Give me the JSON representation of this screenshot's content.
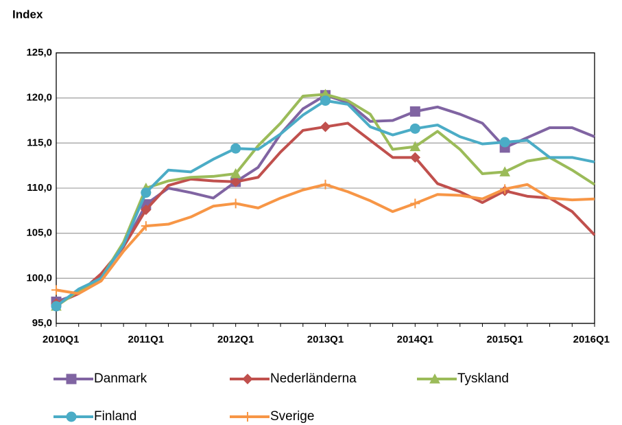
{
  "chart_data": {
    "type": "line",
    "y_label": "Index",
    "categories": [
      "2010Q1",
      null,
      null,
      null,
      "2011Q1",
      null,
      null,
      null,
      "2012Q1",
      null,
      null,
      null,
      "2013Q1",
      null,
      null,
      null,
      "2014Q1",
      null,
      null,
      null,
      "2015Q1",
      null,
      null,
      null,
      "2016Q1"
    ],
    "ylim": [
      95,
      125
    ],
    "yticks": [
      {
        "value": 95,
        "label": "95,0"
      },
      {
        "value": 100,
        "label": "100,0"
      },
      {
        "value": 105,
        "label": "105,0"
      },
      {
        "value": 110,
        "label": "110,0"
      },
      {
        "value": 115,
        "label": "115,0"
      },
      {
        "value": 120,
        "label": "120,0"
      },
      {
        "value": 125,
        "label": "125,0"
      }
    ],
    "grid": true,
    "legend": "bottom",
    "series": [
      {
        "name": "Danmark",
        "color": "#8064a2",
        "marker": "square",
        "values": [
          97.4,
          98.3,
          100.3,
          103.5,
          108.2,
          110,
          109.5,
          108.9,
          110.7,
          112.3,
          116,
          118.8,
          120.3,
          119.5,
          117.4,
          117.5,
          118.5,
          119,
          118.2,
          117.2,
          114.5,
          115.6,
          116.7,
          116.7,
          115.7
        ]
      },
      {
        "name": "Nederländerna",
        "color": "#c0504d",
        "marker": "diamond",
        "values": [
          97.2,
          98.3,
          100.5,
          103.5,
          107.6,
          110.3,
          111,
          110.8,
          110.7,
          111.2,
          114,
          116.4,
          116.8,
          117.2,
          115.3,
          113.4,
          113.4,
          110.5,
          109.6,
          108.4,
          109.7,
          109.1,
          108.9,
          107.4,
          104.8
        ]
      },
      {
        "name": "Tyskland",
        "color": "#9bbb59",
        "marker": "triangle",
        "values": [
          96.9,
          98.6,
          100,
          104,
          110,
          110.8,
          111.2,
          111.3,
          111.6,
          114.7,
          117.2,
          120.2,
          120.4,
          119.7,
          118.2,
          114.3,
          114.6,
          116.3,
          114.3,
          111.6,
          111.8,
          113,
          113.4,
          112,
          110.4
        ]
      },
      {
        "name": "Finland",
        "color": "#4bacc6",
        "marker": "circle",
        "values": [
          96.9,
          98.8,
          100,
          103.7,
          109.5,
          112,
          111.8,
          113.2,
          114.4,
          114.3,
          116,
          118.1,
          119.7,
          119.3,
          116.8,
          115.9,
          116.6,
          117,
          115.7,
          114.9,
          115.1,
          115.3,
          113.4,
          113.4,
          112.9
        ]
      },
      {
        "name": "Sverige",
        "color": "#f79646",
        "marker": "plus",
        "values": [
          98.7,
          98.3,
          99.7,
          103,
          105.8,
          106,
          106.8,
          108,
          108.3,
          107.8,
          108.9,
          109.8,
          110.4,
          109.6,
          108.6,
          107.4,
          108.3,
          109.3,
          109.2,
          108.8,
          109.9,
          110.4,
          108.9,
          108.7,
          108.8
        ]
      }
    ]
  }
}
